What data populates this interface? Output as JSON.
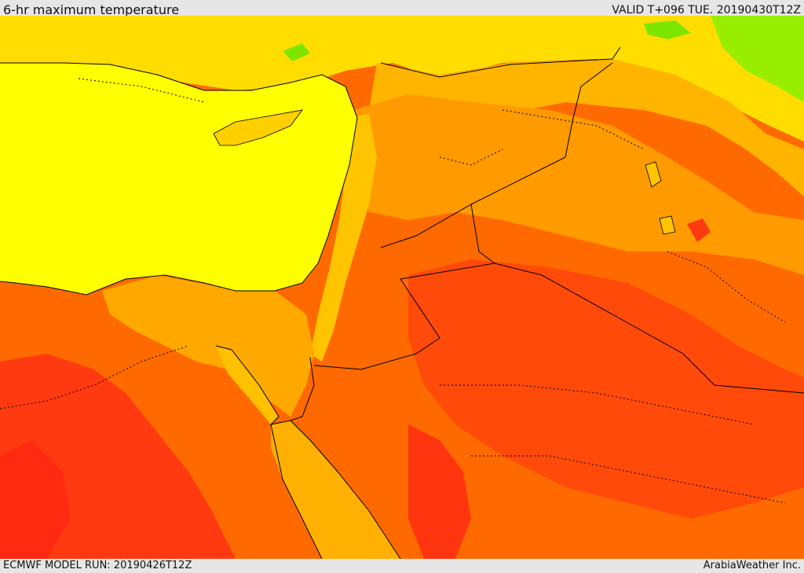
{
  "header": {
    "title": "6-hr maximum temperature",
    "valid": "VALID T+096 TUE. 20190430T12Z"
  },
  "footer": {
    "model_run": "ECMWF MODEL RUN: 20190426T12Z",
    "credit": "ArabiaWeather Inc."
  },
  "colors": {
    "sea": "#ffff00",
    "warm_yellow": "#ffd000",
    "amber": "#ffb000",
    "orange": "#ff8c00",
    "deep_orange": "#ff5a00",
    "red": "#ff3a0a",
    "green": "#66e000",
    "border": "#000000"
  }
}
